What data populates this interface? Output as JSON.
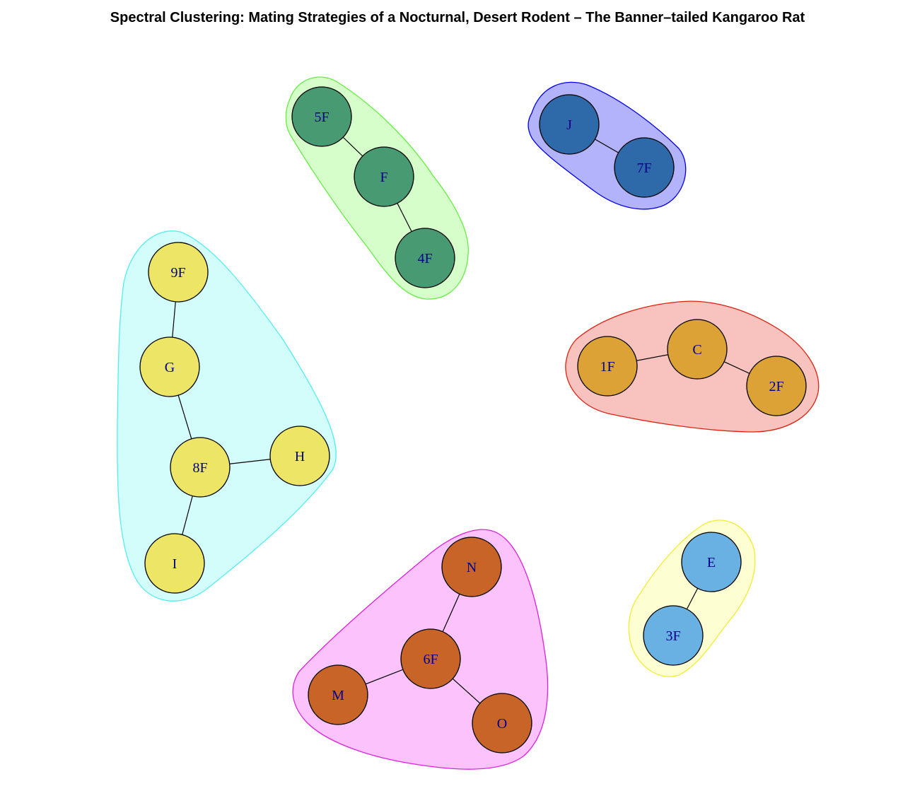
{
  "title": "Spectral Clustering: Mating Strategies of a Nocturnal, Desert Rodent – The Banner–tailed Kangaroo Rat",
  "clusters": [
    {
      "id": "green",
      "hull_fill": "#d6fecb",
      "hull_stroke": "#66ee44",
      "node_color": "#479a72",
      "nodes": [
        "5F",
        "F",
        "4F"
      ]
    },
    {
      "id": "blue",
      "hull_fill": "#b3b3fb",
      "hull_stroke": "#0000ee",
      "node_color": "#2e6aaa",
      "nodes": [
        "J",
        "7F"
      ]
    },
    {
      "id": "cyan",
      "hull_fill": "#d3fdfb",
      "hull_stroke": "#55eeee",
      "node_color": "#ede565",
      "nodes": [
        "9F",
        "G",
        "8F",
        "H",
        "I"
      ]
    },
    {
      "id": "red",
      "hull_fill": "#f8c2be",
      "hull_stroke": "#dd2211",
      "node_color": "#dda236",
      "nodes": [
        "1F",
        "C",
        "2F"
      ]
    },
    {
      "id": "magenta",
      "hull_fill": "#fbc2fb",
      "hull_stroke": "#dd22dd",
      "node_color": "#c86427",
      "nodes": [
        "N",
        "6F",
        "M",
        "O"
      ]
    },
    {
      "id": "yellow",
      "hull_fill": "#fefed3",
      "hull_stroke": "#eeee33",
      "node_color": "#6ab1e3",
      "nodes": [
        "E",
        "3F"
      ]
    }
  ],
  "edges": [
    [
      "5F",
      "F"
    ],
    [
      "F",
      "4F"
    ],
    [
      "J",
      "7F"
    ],
    [
      "9F",
      "G"
    ],
    [
      "G",
      "8F"
    ],
    [
      "8F",
      "H"
    ],
    [
      "8F",
      "I"
    ],
    [
      "1F",
      "C"
    ],
    [
      "C",
      "2F"
    ],
    [
      "N",
      "6F"
    ],
    [
      "6F",
      "M"
    ],
    [
      "6F",
      "O"
    ],
    [
      "E",
      "3F"
    ]
  ]
}
